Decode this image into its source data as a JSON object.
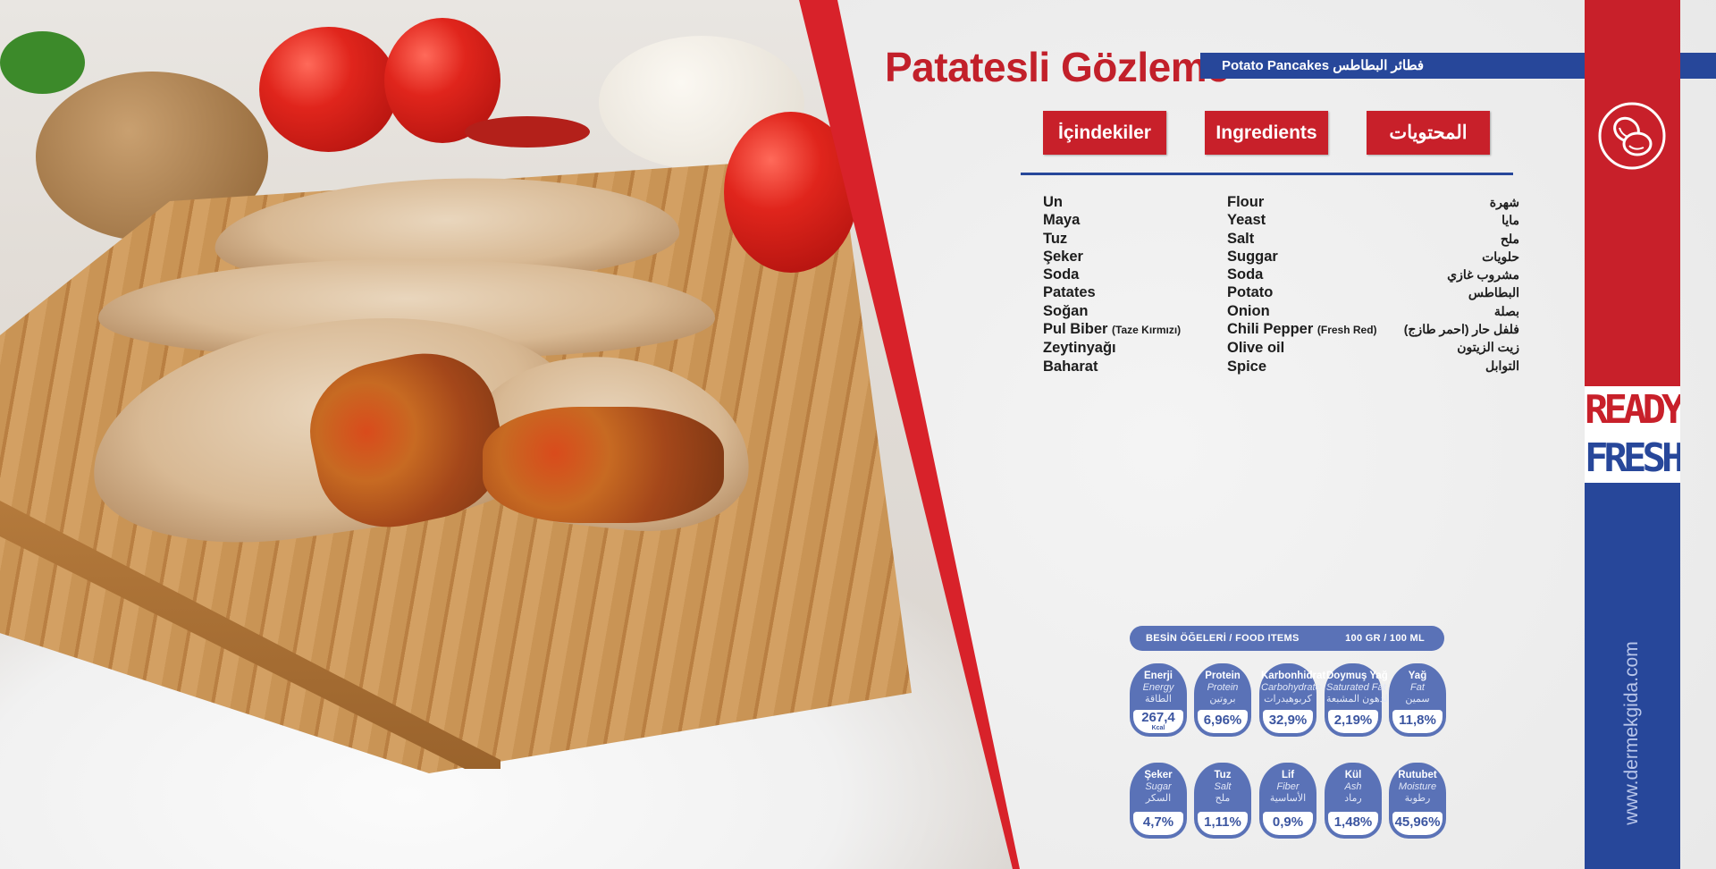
{
  "product": {
    "title": "Patatesli Gözleme",
    "subtitle": "Potato Pancakes فطائر البطاطس"
  },
  "buttons": [
    "İçindekiler",
    "Ingredients",
    "المحتويات"
  ],
  "ingredients": {
    "tr": [
      "Un",
      "Maya",
      "Tuz",
      "Şeker",
      "Soda",
      "Patates",
      "Soğan",
      "Pul Biber",
      "Zeytinyağı",
      "Baharat"
    ],
    "tr_note": "(Taze Kırmızı)",
    "en": [
      "Flour",
      "Yeast",
      "Salt",
      "Suggar",
      "Soda",
      "Potato",
      "Onion",
      "Chili Pepper",
      "Olive oil",
      "Spice"
    ],
    "en_note": "(Fresh Red)",
    "ar": [
      "شهرة",
      "مايا",
      "ملح",
      "حلويات",
      "مشروب غازي",
      "البطاطس",
      "بصلة",
      "فلفل حار (احمر طازج)",
      "زيت الزيتون",
      "التوابل"
    ]
  },
  "nutrition": {
    "header_left": "BESİN ÖĞELERİ / FOOD ITEMS",
    "header_right": "100 GR / 100 ML",
    "items": [
      {
        "tr": "Enerji",
        "en": "Energy",
        "ar": "الطاقة",
        "value": "267,4",
        "unit": "Kcal"
      },
      {
        "tr": "Protein",
        "en": "Protein",
        "ar": "بروتين",
        "value": "6,96%"
      },
      {
        "tr": "Karbonhidrat",
        "en": "Carbohydrate",
        "ar": "كربوهيدرات",
        "value": "32,9%"
      },
      {
        "tr": "Doymuş Yağ",
        "en": "Saturated Fat",
        "ar": "الدهون المشبعة",
        "value": "2,19%"
      },
      {
        "tr": "Yağ",
        "en": "Fat",
        "ar": "سمين",
        "value": "11,8%"
      },
      {
        "tr": "Şeker",
        "en": "Sugar",
        "ar": "السكر",
        "value": "4,7%"
      },
      {
        "tr": "Tuz",
        "en": "Salt",
        "ar": "ملح",
        "value": "1,11%"
      },
      {
        "tr": "Lif",
        "en": "Fiber",
        "ar": "الأساسية",
        "value": "0,9%"
      },
      {
        "tr": "Kül",
        "en": "Ash",
        "ar": "رماد",
        "value": "1,48%"
      },
      {
        "tr": "Rutubet",
        "en": "Moisture",
        "ar": "رطوبة",
        "value": "45,96%"
      }
    ]
  },
  "brand": {
    "logo_line1": "READY",
    "logo_line2": "FRESH",
    "url": "www.dermekgida.com",
    "icon": "potato-icon"
  },
  "colors": {
    "red": "#c8202a",
    "blue": "#27479a",
    "card_blue": "#5a72b7"
  }
}
